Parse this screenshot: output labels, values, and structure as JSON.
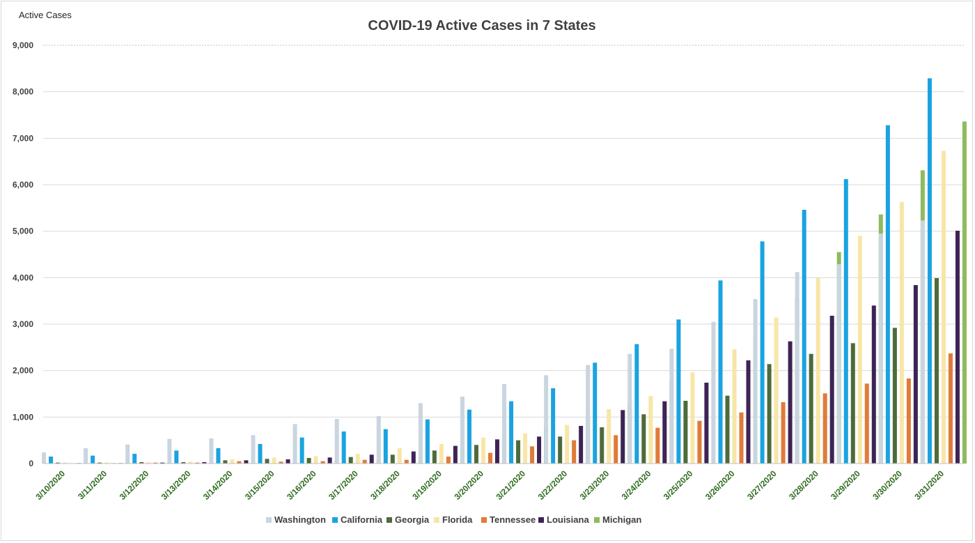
{
  "chart_data": {
    "type": "bar",
    "title": "COVID-19 Active Cases in 7 States",
    "ylabel": "Active Cases",
    "xlabel": "",
    "ylim": [
      0,
      9000
    ],
    "yticks": [
      "0",
      "1,000",
      "2,000",
      "3,000",
      "4,000",
      "5,000",
      "6,000",
      "7,000",
      "8,000",
      "9,000"
    ],
    "ytick_values": [
      0,
      1000,
      2000,
      3000,
      4000,
      5000,
      6000,
      7000,
      8000,
      9000
    ],
    "grid": true,
    "legend": "bottom",
    "categories": [
      "3/10/2020",
      "3/11/2020",
      "3/12/2020",
      "3/13/2020",
      "3/14/2020",
      "3/15/2020",
      "3/16/2020",
      "3/17/2020",
      "3/18/2020",
      "3/19/2020",
      "3/20/2020",
      "3/21/2020",
      "3/22/2020",
      "3/23/2020",
      "3/24/2020",
      "3/25/2020",
      "3/26/2020",
      "3/27/2020",
      "3/28/2020",
      "3/29/2020",
      "3/30/2020",
      "3/31/2020"
    ],
    "series": [
      {
        "name": "Washington",
        "color": "#c9d5df",
        "values": [
          240,
          330,
          410,
          530,
          540,
          610,
          850,
          960,
          1020,
          1300,
          1440,
          1710,
          1900,
          2120,
          2360,
          2470,
          3050,
          3540,
          4120,
          4290,
          4950,
          5230
        ]
      },
      {
        "name": "California",
        "color": "#1aa3e0",
        "values": [
          150,
          170,
          210,
          280,
          330,
          420,
          560,
          690,
          740,
          950,
          1160,
          1340,
          1620,
          2170,
          2570,
          3100,
          3940,
          4780,
          5460,
          6120,
          7280,
          8290
        ]
      },
      {
        "name": "Georgia",
        "color": "#4d6b3a",
        "values": [
          20,
          20,
          30,
          30,
          70,
          100,
          120,
          140,
          190,
          280,
          400,
          500,
          580,
          780,
          1060,
          1350,
          1460,
          2140,
          2360,
          2590,
          2920,
          3990
        ]
      },
      {
        "name": "Florida",
        "color": "#f7e6a7",
        "values": [
          20,
          20,
          30,
          40,
          90,
          130,
          160,
          210,
          330,
          420,
          560,
          650,
          830,
          1170,
          1450,
          1960,
          2460,
          3140,
          3990,
          4900,
          5630,
          6730
        ]
      },
      {
        "name": "Tennessee",
        "color": "#e07b39",
        "values": [
          5,
          10,
          20,
          20,
          50,
          40,
          50,
          80,
          80,
          150,
          230,
          370,
          500,
          610,
          770,
          920,
          1100,
          1320,
          1510,
          1720,
          1830,
          2370
        ]
      },
      {
        "name": "Louisiana",
        "color": "#3d2455",
        "values": [
          10,
          10,
          20,
          30,
          70,
          90,
          130,
          190,
          260,
          380,
          520,
          580,
          810,
          1150,
          1340,
          1740,
          2220,
          2630,
          3180,
          3400,
          3840,
          5010
        ]
      },
      {
        "name": "Michigan",
        "color": "#8dbb5e",
        "values": [
          5,
          10,
          10,
          10,
          30,
          40,
          60,
          70,
          90,
          330,
          550,
          790,
          1040,
          1320,
          1780,
          2260,
          2790,
          3570,
          4550,
          5360,
          6310,
          7360
        ]
      }
    ]
  }
}
